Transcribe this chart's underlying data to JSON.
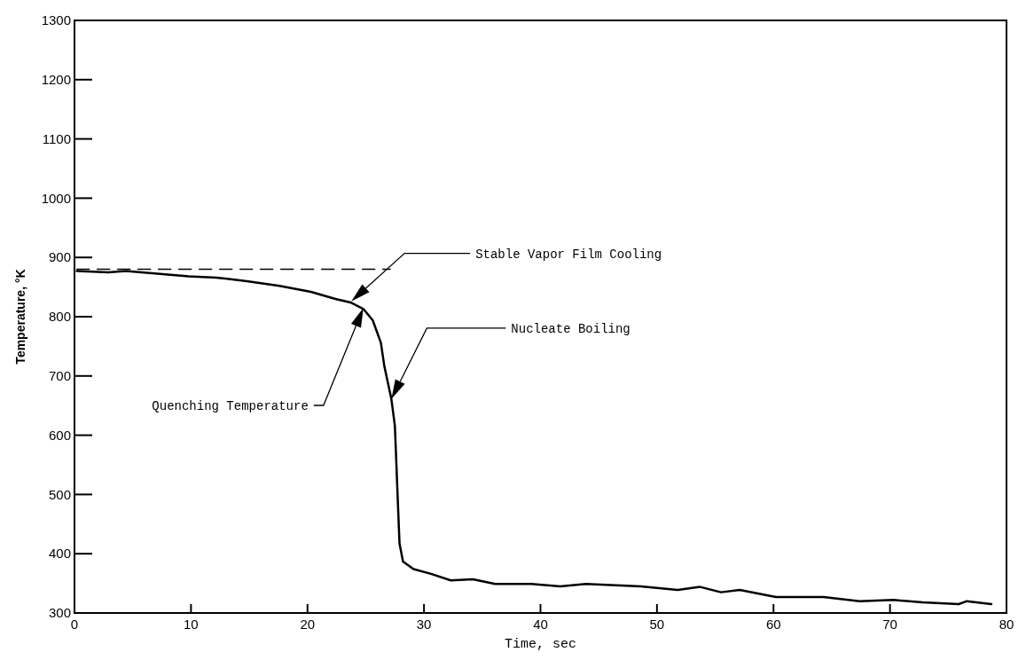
{
  "chart_data": {
    "type": "line",
    "xlabel": "Time, sec",
    "ylabel": "Temperature, °K",
    "xlim": [
      0,
      80
    ],
    "ylim": [
      300,
      1300
    ],
    "xticks": [
      0,
      10,
      20,
      30,
      40,
      50,
      60,
      70,
      80
    ],
    "yticks": [
      300,
      400,
      500,
      600,
      700,
      800,
      900,
      1000,
      1100,
      1200,
      1300
    ],
    "grid": false,
    "series": [
      {
        "color": "#000000",
        "line_style": "solid",
        "x": [
          0.2,
          2.9,
          4.4,
          9.8,
          12.2,
          14.8,
          17.6,
          20.3,
          22.4,
          23.7,
          24.8,
          25.6,
          26.3,
          26.6,
          27.2,
          27.5,
          27.6,
          27.7,
          27.8,
          27.9,
          28.2,
          29.1,
          30.6,
          32.3,
          34.2,
          36.1,
          39.2,
          41.7,
          43.9,
          48.6,
          51.8,
          53.7,
          55.5,
          57.1,
          60.2,
          64.3,
          67.4,
          70.3,
          72.8,
          75.9,
          76.6,
          78.7
        ],
        "values": [
          877,
          875,
          877,
          868,
          866,
          860,
          852,
          842,
          830,
          824,
          813,
          794,
          756,
          716,
          661,
          616,
          567,
          516,
          466,
          417,
          387,
          374,
          366,
          355,
          357,
          349,
          349,
          345,
          349,
          345,
          339,
          344,
          335,
          339,
          327,
          327,
          320,
          322,
          318,
          315,
          320,
          315
        ]
      },
      {
        "color": "#000000",
        "line_style": "dashed",
        "x": [
          0.2,
          27.1
        ],
        "values": [
          880,
          880
        ]
      }
    ],
    "annotations": [
      "Stable Vapor Film Cooling",
      "Quenching Temperature",
      "Nucleate Boiling"
    ]
  }
}
